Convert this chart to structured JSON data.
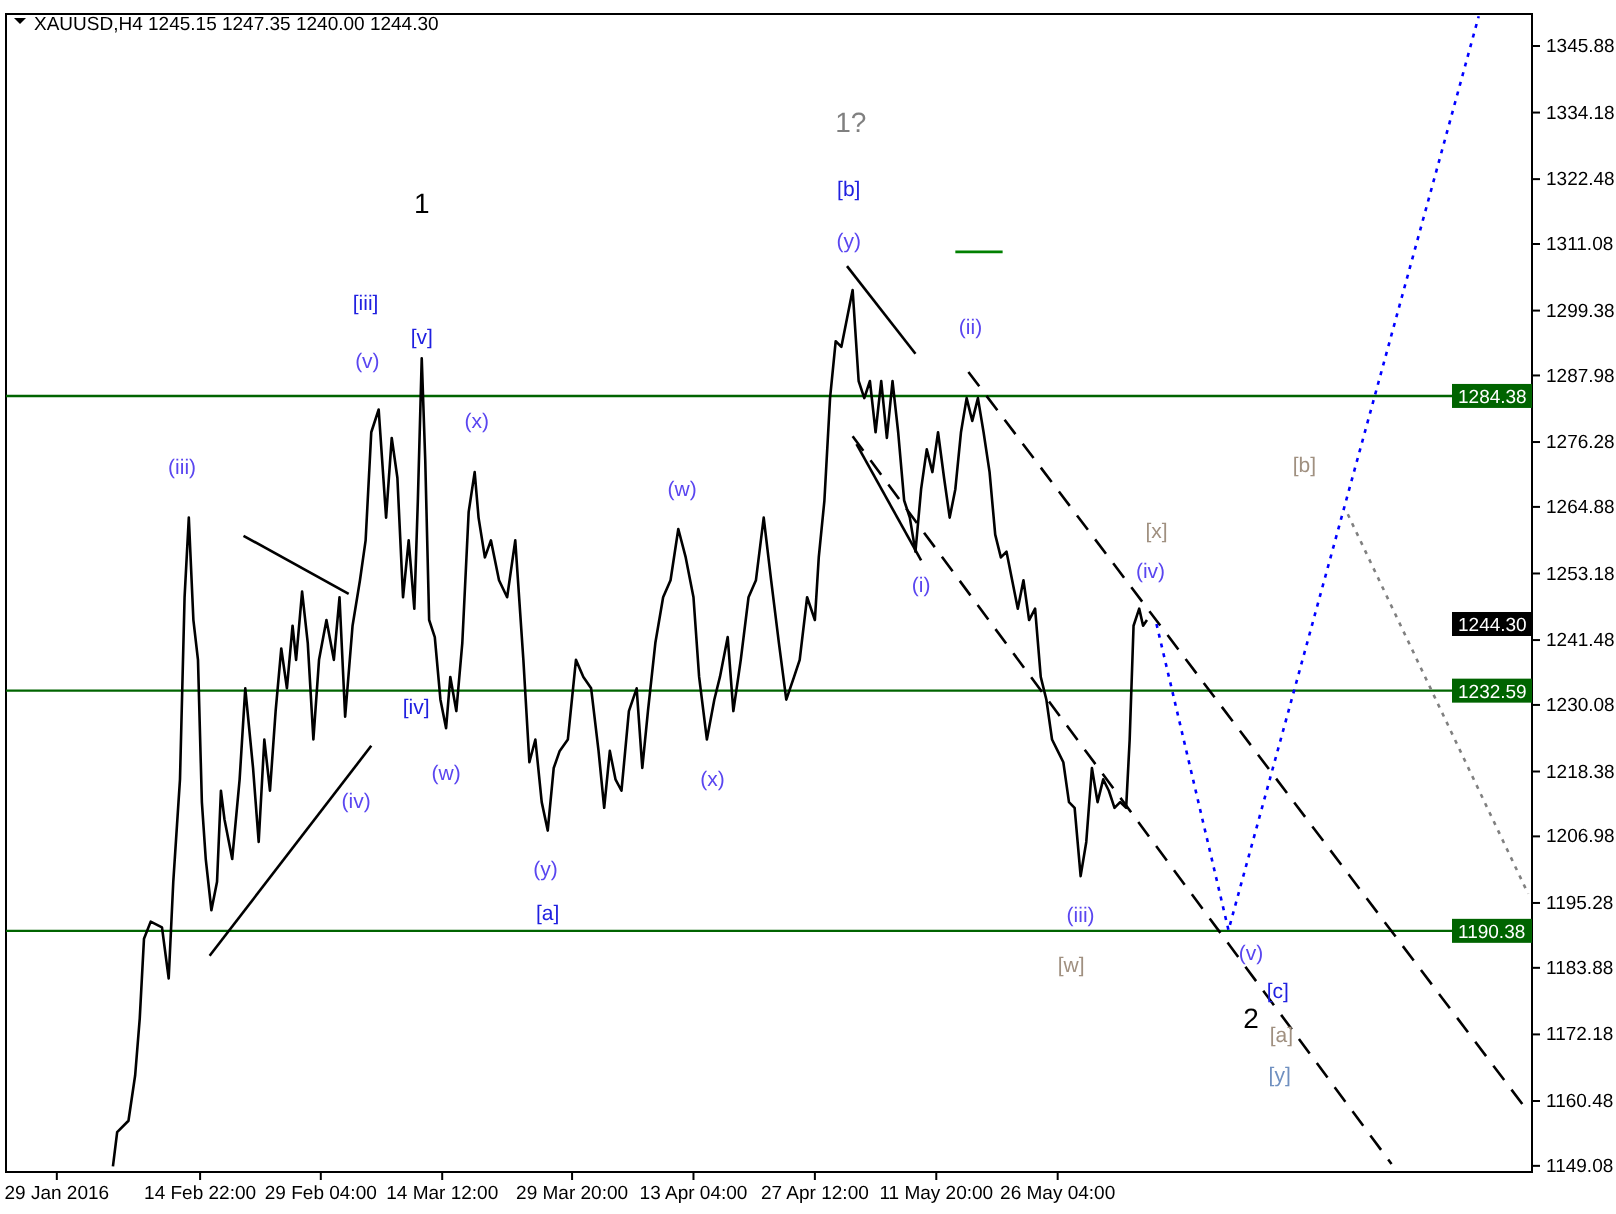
{
  "chart_data": {
    "type": "line",
    "title": "XAUUSD,H4  1245.15 1247.35 1240.00 1244.30",
    "xlim": [
      "2016-01-23T00:00",
      "2016-07-21T04:00"
    ],
    "ylim": [
      1148.0,
      1351.5
    ],
    "xticks": [
      {
        "value": "2016-01-29T00:00",
        "label": "29 Jan 2016"
      },
      {
        "value": "2016-02-14T22:00",
        "label": "14 Feb 22:00"
      },
      {
        "value": "2016-02-29T04:00",
        "label": "29 Feb 04:00"
      },
      {
        "value": "2016-03-14T12:00",
        "label": "14 Mar 12:00"
      },
      {
        "value": "2016-03-29T20:00",
        "label": "29 Mar 20:00"
      },
      {
        "value": "2016-04-13T04:00",
        "label": "13 Apr 04:00"
      },
      {
        "value": "2016-04-27T12:00",
        "label": "27 Apr 12:00"
      },
      {
        "value": "2016-05-11T20:00",
        "label": "11 May 20:00"
      },
      {
        "value": "2016-05-26T04:00",
        "label": "26 May 04:00"
      }
    ],
    "yticks": [
      1149.08,
      1160.48,
      1172.18,
      1183.88,
      1195.28,
      1206.98,
      1218.38,
      1230.08,
      1241.48,
      1253.18,
      1264.88,
      1276.28,
      1287.98,
      1299.38,
      1311.08,
      1322.48,
      1334.18,
      1345.88
    ],
    "grid": false,
    "ref_lines": [
      {
        "axis": "y",
        "value": 1284.38,
        "label": "1284.38",
        "color": "#006400"
      },
      {
        "axis": "y",
        "value": 1232.59,
        "label": "1232.59",
        "color": "#006400"
      },
      {
        "axis": "y",
        "value": 1190.38,
        "label": "1190.38",
        "color": "#006400"
      }
    ],
    "series": [
      {
        "color": "#000000",
        "line_style": "solid",
        "x": [
          "2016-02-04T15:00",
          "2016-02-05T03:00",
          "2016-02-06T11:00",
          "2016-02-07T06:00",
          "2016-02-07T19:00",
          "2016-02-08T07:00",
          "2016-02-09T02:00",
          "2016-02-10T10:00",
          "2016-02-11T05:00",
          "2016-02-11T18:00",
          "2016-02-12T13:00",
          "2016-02-13T02:00",
          "2016-02-13T14:00",
          "2016-02-14T03:00",
          "2016-02-14T16:00",
          "2016-02-15T03:00",
          "2016-02-15T14:00",
          "2016-02-16T06:00",
          "2016-02-16T22:00",
          "2016-02-17T09:00",
          "2016-02-17T19:00",
          "2016-02-18T17:00",
          "2016-02-19T14:00",
          "2016-02-20T06:00",
          "2016-02-21T04:00",
          "2016-02-21T20:00",
          "2016-02-22T12:00",
          "2016-02-23T04:00",
          "2016-02-23T20:00",
          "2016-02-24T12:00",
          "2016-02-25T04:00",
          "2016-02-25T20:00",
          "2016-02-26T06:00",
          "2016-02-26T23:00",
          "2016-02-27T15:00",
          "2016-02-28T07:00",
          "2016-02-28T23:00",
          "2016-02-29T20:00",
          "2016-03-01T17:00",
          "2016-03-02T09:00",
          "2016-03-03T01:00",
          "2016-03-03T22:00",
          "2016-03-04T19:00",
          "2016-03-05T11:00",
          "2016-03-06T03:00",
          "2016-03-07T00:00",
          "2016-03-07T21:00",
          "2016-03-08T13:00",
          "2016-03-09T05:00",
          "2016-03-09T21:00",
          "2016-03-10T13:00",
          "2016-03-11T05:00",
          "2016-03-11T15:00",
          "2016-03-12T02:00",
          "2016-03-12T12:00",
          "2016-03-12T23:00",
          "2016-03-13T15:00",
          "2016-03-14T07:00",
          "2016-03-14T23:00",
          "2016-03-15T11:00",
          "2016-03-16T04:00",
          "2016-03-16T21:00",
          "2016-03-17T15:00",
          "2016-03-18T08:00",
          "2016-03-18T19:00",
          "2016-03-19T13:00",
          "2016-03-20T06:00",
          "2016-03-21T05:00",
          "2016-03-22T04:00",
          "2016-03-23T03:00",
          "2016-03-24T02:00",
          "2016-03-24T19:00",
          "2016-03-25T12:00",
          "2016-03-26T06:00",
          "2016-03-26T23:00",
          "2016-03-27T16:00",
          "2016-03-28T09:00",
          "2016-03-29T08:00",
          "2016-03-30T07:00",
          "2016-03-31T04:00",
          "2016-04-01T02:00",
          "2016-04-01T23:00",
          "2016-04-02T15:00",
          "2016-04-03T07:00",
          "2016-04-03T23:00",
          "2016-04-04T16:00",
          "2016-04-05T13:00",
          "2016-04-06T11:00",
          "2016-04-07T03:00",
          "2016-04-07T19:00",
          "2016-04-08T16:00",
          "2016-04-09T14:00",
          "2016-04-10T11:00",
          "2016-04-11T09:00",
          "2016-04-12T06:00",
          "2016-04-13T04:00",
          "2016-04-13T20:00",
          "2016-04-14T18:00",
          "2016-04-15T15:00",
          "2016-04-16T07:00",
          "2016-04-17T05:00",
          "2016-04-17T21:00",
          "2016-04-18T18:00",
          "2016-04-19T16:00",
          "2016-04-20T13:00",
          "2016-04-21T11:00",
          "2016-04-22T08:00",
          "2016-04-23T06:00",
          "2016-04-24T03:00",
          "2016-04-25T01:00",
          "2016-04-25T17:00",
          "2016-04-26T14:00",
          "2016-04-27T12:00",
          "2016-04-27T23:00",
          "2016-04-28T15:00",
          "2016-04-29T07:00",
          "2016-04-29T23:00",
          "2016-04-30T15:00",
          "2016-05-01T07:00",
          "2016-05-01T23:00",
          "2016-05-02T16:00",
          "2016-05-03T08:00",
          "2016-05-04T00:00",
          "2016-05-04T16:00",
          "2016-05-05T08:00",
          "2016-05-06T00:00",
          "2016-05-06T16:00",
          "2016-05-07T08:00",
          "2016-05-08T01:00",
          "2016-05-08T17:00",
          "2016-05-09T09:00",
          "2016-05-10T01:00",
          "2016-05-10T17:00",
          "2016-05-11T09:00",
          "2016-05-12T01:00",
          "2016-05-12T18:00",
          "2016-05-13T10:00",
          "2016-05-14T02:00",
          "2016-05-14T18:00",
          "2016-05-15T10:00",
          "2016-05-16T02:00",
          "2016-05-16T18:00",
          "2016-05-17T10:00",
          "2016-05-18T03:00",
          "2016-05-18T19:00",
          "2016-05-19T11:00",
          "2016-05-20T03:00",
          "2016-05-20T19:00",
          "2016-05-21T11:00",
          "2016-05-22T03:00",
          "2016-05-22T19:00",
          "2016-05-23T12:00",
          "2016-05-24T04:00",
          "2016-05-24T20:00",
          "2016-05-25T12:00",
          "2016-05-26T04:00",
          "2016-05-26T20:00",
          "2016-05-27T12:00",
          "2016-05-28T04:00",
          "2016-05-28T21:00",
          "2016-05-29T13:00",
          "2016-05-30T05:00",
          "2016-05-30T21:00",
          "2016-05-31T13:00",
          "2016-06-01T05:00",
          "2016-06-01T21:00",
          "2016-06-02T13:00",
          "2016-06-03T06:00",
          "2016-06-03T16:00",
          "2016-06-04T03:00",
          "2016-06-04T19:00",
          "2016-06-05T06:00",
          "2016-06-05T17:00"
        ],
        "values": [
          1149,
          1155,
          1157,
          1165,
          1175,
          1189,
          1192,
          1191,
          1182,
          1199,
          1217,
          1249,
          1263,
          1245,
          1238,
          1213,
          1203,
          1194,
          1199,
          1215,
          1210,
          1203,
          1217,
          1233,
          1219,
          1206,
          1224,
          1215,
          1229,
          1240,
          1233,
          1244,
          1238,
          1250,
          1241,
          1224,
          1238,
          1245,
          1238,
          1249,
          1228,
          1244,
          1252,
          1259,
          1278,
          1282,
          1263,
          1277,
          1270,
          1249,
          1259,
          1247,
          1266,
          1291,
          1273,
          1245,
          1242,
          1231,
          1226,
          1235,
          1229,
          1241,
          1264,
          1271,
          1263,
          1256,
          1259,
          1252,
          1249,
          1259,
          1238,
          1220,
          1224,
          1213,
          1208,
          1219,
          1222,
          1224,
          1238,
          1235,
          1233,
          1222,
          1212,
          1222,
          1217,
          1215,
          1229,
          1233,
          1219,
          1229,
          1241,
          1249,
          1252,
          1261,
          1256,
          1249,
          1235,
          1224,
          1231,
          1235,
          1242,
          1229,
          1238,
          1249,
          1252,
          1263,
          1252,
          1241,
          1231,
          1235,
          1238,
          1249,
          1245,
          1256,
          1266,
          1284,
          1294,
          1293,
          1298,
          1303,
          1287,
          1284,
          1287,
          1278,
          1287,
          1277,
          1287,
          1278,
          1266,
          1263,
          1257,
          1268,
          1275,
          1271,
          1278,
          1270,
          1263,
          1268,
          1278,
          1284,
          1280,
          1284,
          1278,
          1271,
          1260,
          1256,
          1257,
          1252,
          1247,
          1252,
          1245,
          1247,
          1235,
          1231,
          1224,
          1222,
          1220,
          1213,
          1212,
          1200,
          1206,
          1219,
          1213,
          1217,
          1215,
          1212,
          1213,
          1212,
          1224,
          1244,
          1247,
          1244,
          1245
        ]
      },
      {
        "color": "#000000",
        "line_style": "solid",
        "x": [
          "2016-02-16T01:00",
          "2016-03-06T03:00"
        ],
        "values": [
          1186.0,
          1222.9
        ]
      },
      {
        "color": "#000000",
        "line_style": "solid",
        "x": [
          "2016-02-20T01:00",
          "2016-03-03T11:00"
        ],
        "values": [
          1259.8,
          1249.6
        ]
      },
      {
        "color": "#000000",
        "line_style": "solid",
        "x": [
          "2016-05-01T07:00",
          "2016-05-09T09:00"
        ],
        "values": [
          1307.2,
          1291.8
        ]
      },
      {
        "color": "#000000",
        "line_style": "solid",
        "x": [
          "2016-05-02T10:00",
          "2016-05-10T01:00"
        ],
        "values": [
          1275.9,
          1255.5
        ]
      },
      {
        "color": "#000000",
        "line_style": "dashed",
        "x": [
          "2016-05-01T23:00",
          "2016-07-04T14:00"
        ],
        "values": [
          1277.3,
          1149.4
        ]
      },
      {
        "color": "#000000",
        "line_style": "dashed",
        "x": [
          "2016-05-15T15:00",
          "2016-07-20T17:00"
        ],
        "values": [
          1288.6,
          1158.6
        ]
      },
      {
        "color": "#008000",
        "line_style": "solid",
        "x": [
          "2016-05-14T02:00",
          "2016-05-19T16:00"
        ],
        "values": [
          1309.7,
          1309.7
        ]
      },
      {
        "color": "#0000ff",
        "line_style": "dotted",
        "x": [
          "2016-06-06T20:00",
          "2016-06-15T08:00",
          "2016-07-14T21:00"
        ],
        "values": [
          1244.3,
          1190.5,
          1351.1
        ]
      },
      {
        "color": "#808080",
        "line_style": "dotted",
        "x": [
          "2016-06-29T10:00",
          "2016-07-20T17:00"
        ],
        "values": [
          1263.6,
          1196.9
        ]
      }
    ],
    "annotations": [
      "1",
      "[iii]",
      "[v]",
      "(v)",
      "(x)",
      "(iii)",
      "(w)",
      "[iv]",
      "(w)",
      "(iv)",
      "(y)",
      "[a]",
      "(x)",
      "1?",
      "[b]",
      "(y)",
      "(ii)",
      {
        "text": "(i)",
        "x": "2016-05-10T01:00",
        "y": 1257
      },
      "[x]",
      "(iv)",
      "[b]",
      "(iii)",
      "[w]",
      "(v)",
      "[c]",
      "2",
      "[a]",
      "[y]",
      "1244.30"
    ]
  }
}
